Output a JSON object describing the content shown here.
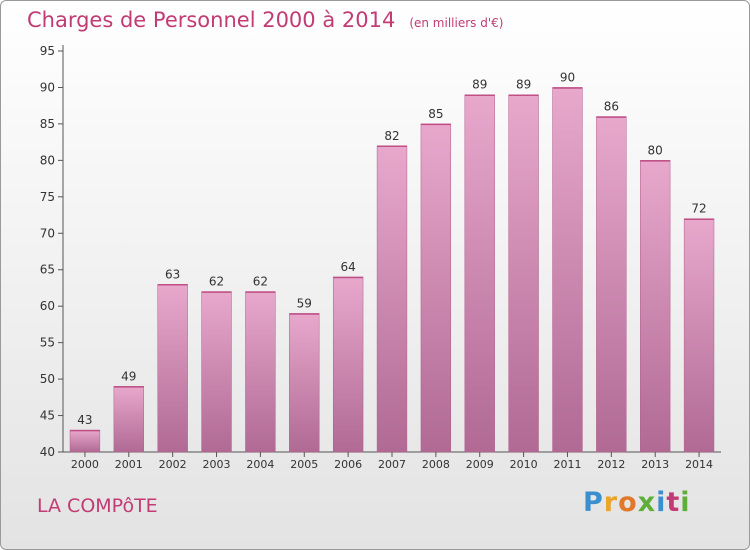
{
  "title": "Charges de Personnel 2000 à 2014",
  "subtitle": "(en milliers d'€)",
  "commune": "LA COMPôTE",
  "logo": {
    "letters": [
      {
        "ch": "P",
        "color": "#3a8fd0"
      },
      {
        "ch": "r",
        "color": "#e9a62a"
      },
      {
        "ch": "o",
        "color": "#e07a2a"
      },
      {
        "ch": "x",
        "color": "#5fae3a"
      },
      {
        "ch": "i",
        "color": "#3a8fd0"
      },
      {
        "ch": "t",
        "color": "#c23b74"
      },
      {
        "ch": "i",
        "color": "#5fae3a"
      }
    ]
  },
  "colors": {
    "title": "#c23b74",
    "bar_top": "#e8a8cc",
    "bar_bottom": "#b06a94"
  },
  "chart_data": {
    "type": "bar",
    "categories": [
      "2000",
      "2001",
      "2002",
      "2003",
      "2004",
      "2005",
      "2006",
      "2007",
      "2008",
      "2009",
      "2010",
      "2011",
      "2012",
      "2013",
      "2014"
    ],
    "values": [
      43,
      49,
      63,
      62,
      62,
      59,
      64,
      82,
      85,
      89,
      89,
      90,
      86,
      80,
      72
    ],
    "ylim": [
      40,
      95
    ],
    "yticks": [
      40,
      45,
      50,
      55,
      60,
      65,
      70,
      75,
      80,
      85,
      90,
      95
    ],
    "grid": false,
    "data_labels": true
  }
}
